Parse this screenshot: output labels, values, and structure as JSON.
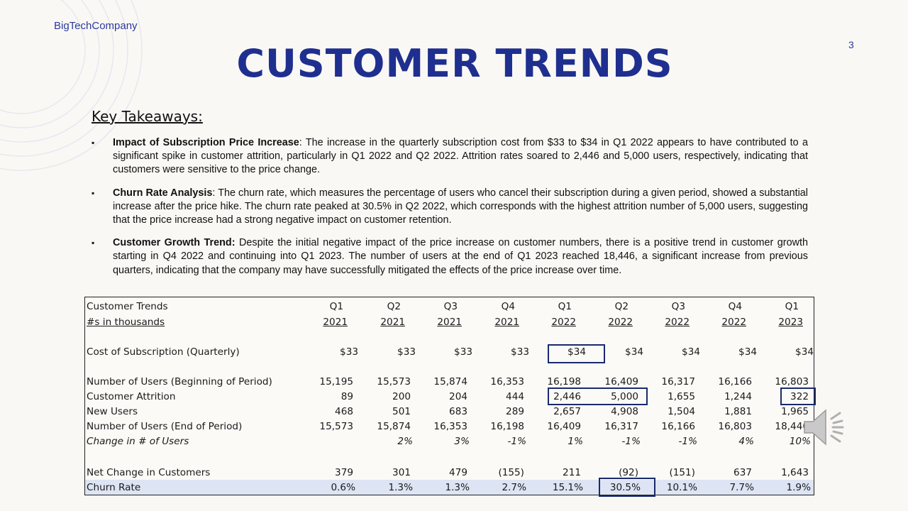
{
  "header": {
    "company": "BigTechCompany",
    "page_number": "3",
    "title": "CUSTOMER TRENDS"
  },
  "takeaways": {
    "heading": "Key Takeaways:",
    "bullets": [
      {
        "lead": "Impact of Subscription Price Increase",
        "text": ": The increase in the quarterly subscription cost from $33 to $34 in Q1 2022 appears to have contributed to a significant spike in customer attrition, particularly in Q1 2022 and Q2 2022. Attrition rates soared to 2,446 and 5,000 users, respectively, indicating that customers were sensitive to the price change."
      },
      {
        "lead": "Churn Rate Analysis",
        "text": ": The churn rate, which measures the percentage of users who cancel their subscription during a given period, showed a substantial increase after the price hike. The churn rate peaked at 30.5% in Q2 2022, which corresponds with the highest attrition number of 5,000 users, suggesting that the price increase had a strong negative impact on customer retention."
      },
      {
        "lead": "Customer Growth Trend:",
        "text": " Despite the initial negative impact of the price increase on customer numbers, there is a positive trend in customer growth starting in Q4 2022 and continuing into Q1 2023. The number of users at the end of Q1 2023 reached 18,446, a significant increase from previous quarters, indicating that the company may have successfully mitigated the effects of the price increase over time."
      }
    ]
  },
  "table": {
    "title": "Customer Trends",
    "subtitle": "#s in thousands",
    "quarters": [
      "Q1",
      "Q2",
      "Q3",
      "Q4",
      "Q1",
      "Q2",
      "Q3",
      "Q4",
      "Q1"
    ],
    "years": [
      "2021",
      "2021",
      "2021",
      "2021",
      "2022",
      "2022",
      "2022",
      "2022",
      "2023"
    ],
    "rows": {
      "cost": {
        "label": "Cost of Subscription (Quarterly)",
        "values": [
          "$33",
          "$33",
          "$33",
          "$33",
          "$34",
          "$34",
          "$34",
          "$34",
          "$34"
        ]
      },
      "users_begin": {
        "label": "Number of Users (Beginning of Period)",
        "values": [
          "15,195",
          "15,573",
          "15,874",
          "16,353",
          "16,198",
          "16,409",
          "16,317",
          "16,166",
          "16,803"
        ]
      },
      "attrition": {
        "label": "Customer Attrition",
        "values": [
          "89",
          "200",
          "204",
          "444",
          "2,446",
          "5,000",
          "1,655",
          "1,244",
          "322"
        ]
      },
      "new_users": {
        "label": "New Users",
        "values": [
          "468",
          "501",
          "683",
          "289",
          "2,657",
          "4,908",
          "1,504",
          "1,881",
          "1,965"
        ]
      },
      "users_end": {
        "label": "Number of Users (End of Period)",
        "values": [
          "15,573",
          "15,874",
          "16,353",
          "16,198",
          "16,409",
          "16,317",
          "16,166",
          "16,803",
          "18,446"
        ]
      },
      "change": {
        "label": "Change in # of Users",
        "values": [
          "",
          "2%",
          "3%",
          "-1%",
          "1%",
          "-1%",
          "-1%",
          "4%",
          "10%"
        ]
      },
      "net_change": {
        "label": "Net Change in Customers",
        "values": [
          "379",
          "301",
          "479",
          "(155)",
          "211",
          "(92)",
          "(151)",
          "637",
          "1,643"
        ]
      },
      "churn": {
        "label": "Churn Rate",
        "values": [
          "0.6%",
          "1.3%",
          "1.3%",
          "2.7%",
          "15.1%",
          "30.5%",
          "10.1%",
          "7.7%",
          "1.9%"
        ]
      }
    }
  },
  "icons": {
    "speaker": "speaker-icon"
  }
}
